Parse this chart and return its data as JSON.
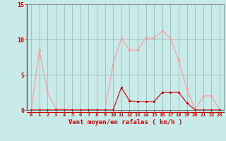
{
  "x": [
    0,
    1,
    2,
    3,
    4,
    5,
    6,
    7,
    8,
    9,
    10,
    11,
    12,
    13,
    14,
    15,
    16,
    17,
    18,
    19,
    20,
    21,
    22,
    23
  ],
  "y_rafales": [
    0.0,
    8.5,
    2.5,
    0.2,
    0.1,
    0.0,
    0.0,
    0.0,
    0.0,
    0.0,
    6.5,
    10.2,
    8.5,
    8.5,
    10.2,
    10.2,
    11.2,
    10.2,
    7.0,
    3.0,
    0.0,
    2.0,
    2.0,
    0.0
  ],
  "y_moyen": [
    0.0,
    0.0,
    0.0,
    0.0,
    0.0,
    0.0,
    0.0,
    0.0,
    0.0,
    0.0,
    0.0,
    3.2,
    1.3,
    1.2,
    1.2,
    1.2,
    2.5,
    2.5,
    2.5,
    1.0,
    0.0,
    0.0,
    0.0,
    0.0
  ],
  "color_rafales": "#FF9999",
  "color_moyen": "#CC0000",
  "background_color": "#C8EAE8",
  "grid_color": "#9BBABA",
  "xlabel": "Vent moyen/en rafales ( km/h )",
  "ylim": [
    0,
    15
  ],
  "xlim": [
    -0.5,
    23.5
  ],
  "yticks": [
    0,
    5,
    10,
    15
  ],
  "xticks": [
    0,
    1,
    2,
    3,
    4,
    5,
    6,
    7,
    8,
    9,
    10,
    11,
    12,
    13,
    14,
    15,
    16,
    17,
    18,
    19,
    20,
    21,
    22,
    23
  ],
  "tick_color": "#CC0000",
  "label_color": "#CC0000"
}
